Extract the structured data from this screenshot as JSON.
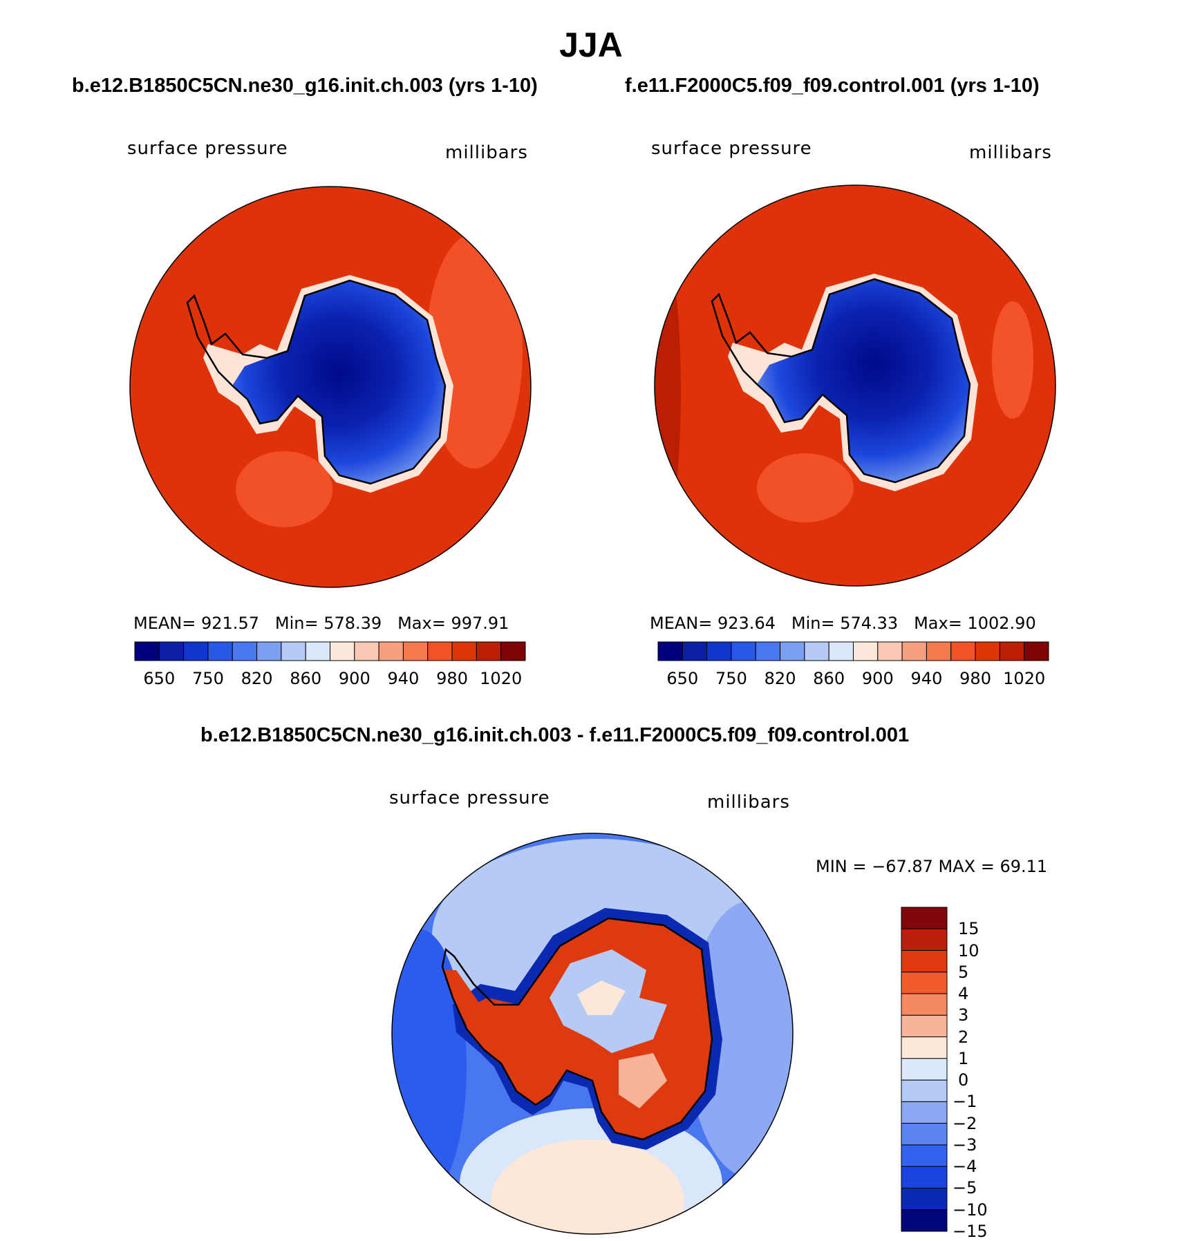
{
  "title": "JJA",
  "panels": {
    "left": {
      "case": "b.e12.B1850C5CN.ne30_g16.init.ch.003 (yrs 1-10)",
      "variable": "surface pressure",
      "units": "millibars",
      "stats": {
        "mean_label": "MEAN=",
        "mean": "921.57",
        "min_label": "Min=",
        "min": "578.39",
        "max_label": "Max=",
        "max": "997.91"
      }
    },
    "right": {
      "case": "f.e11.F2000C5.f09_f09.control.001 (yrs 1-10)",
      "variable": "surface pressure",
      "units": "millibars",
      "stats": {
        "mean_label": "MEAN=",
        "mean": "923.64",
        "min_label": "Min=",
        "min": "574.33",
        "max_label": "Max=",
        "max": "1002.90"
      }
    },
    "diff": {
      "case": "b.e12.B1850C5CN.ne30_g16.init.ch.003 - f.e11.F2000C5.f09_f09.control.001",
      "variable": "surface pressure",
      "units": "millibars",
      "minmax": "MIN =  −67.87 MAX =   69.11"
    }
  },
  "colorbar_abs": {
    "colors": [
      "#00007f",
      "#0a1fa3",
      "#1036cc",
      "#2a58e6",
      "#4877ef",
      "#7d9ff2",
      "#b5cbf5",
      "#dae6fa",
      "#fde9dc",
      "#f9c9b4",
      "#f6a07f",
      "#f47b4f",
      "#ef5326",
      "#df3608",
      "#ba1f04",
      "#7e0303"
    ],
    "tick_labels": [
      "650",
      "750",
      "820",
      "860",
      "900",
      "940",
      "980",
      "1020"
    ]
  },
  "colorbar_diff": {
    "colors": [
      "#82070c",
      "#b91f0b",
      "#dd3a10",
      "#f25c2a",
      "#f58a60",
      "#f7b49a",
      "#fde7d9",
      "#dce9fb",
      "#b5caf4",
      "#8ea9f3",
      "#5c86ef",
      "#3263ef",
      "#1b44dd",
      "#0c29b1",
      "#000879"
    ],
    "tick_labels": [
      "15",
      "10",
      "5",
      "4",
      "3",
      "2",
      "1",
      "0",
      "−1",
      "−2",
      "−3",
      "−4",
      "−5",
      "−10",
      "−15"
    ]
  },
  "colors": {
    "ocean_abs": "#e03208",
    "ice_deep": "#000a8a",
    "ocean_diff": "#2c5ced"
  }
}
